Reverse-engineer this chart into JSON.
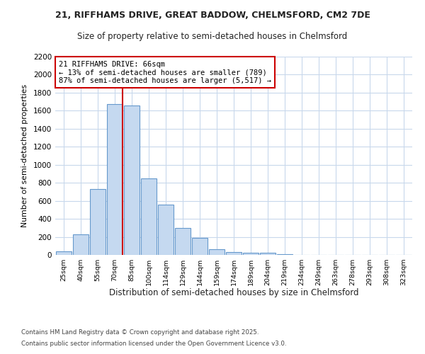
{
  "title1": "21, RIFFHAMS DRIVE, GREAT BADDOW, CHELMSFORD, CM2 7DE",
  "title2": "Size of property relative to semi-detached houses in Chelmsford",
  "xlabel": "Distribution of semi-detached houses by size in Chelmsford",
  "ylabel": "Number of semi-detached properties",
  "categories": [
    "25sqm",
    "40sqm",
    "55sqm",
    "70sqm",
    "85sqm",
    "100sqm",
    "114sqm",
    "129sqm",
    "144sqm",
    "159sqm",
    "174sqm",
    "189sqm",
    "204sqm",
    "219sqm",
    "234sqm",
    "249sqm",
    "263sqm",
    "278sqm",
    "293sqm",
    "308sqm",
    "323sqm"
  ],
  "values": [
    40,
    225,
    730,
    1670,
    1660,
    845,
    560,
    300,
    185,
    65,
    35,
    25,
    20,
    5,
    0,
    0,
    0,
    0,
    0,
    0,
    0
  ],
  "bar_color": "#c5d9f0",
  "bar_edge_color": "#6699cc",
  "vline_color": "#cc0000",
  "vline_index": 3,
  "annotation_text": "21 RIFFHAMS DRIVE: 66sqm\n← 13% of semi-detached houses are smaller (789)\n87% of semi-detached houses are larger (5,517) →",
  "annotation_box_edgecolor": "#cc0000",
  "ylim": [
    0,
    2200
  ],
  "yticks": [
    0,
    200,
    400,
    600,
    800,
    1000,
    1200,
    1400,
    1600,
    1800,
    2000,
    2200
  ],
  "footer1": "Contains HM Land Registry data © Crown copyright and database right 2025.",
  "footer2": "Contains public sector information licensed under the Open Government Licence v3.0.",
  "bg_color": "#ffffff",
  "plot_bg_color": "#ffffff",
  "grid_color": "#c8d8ec"
}
